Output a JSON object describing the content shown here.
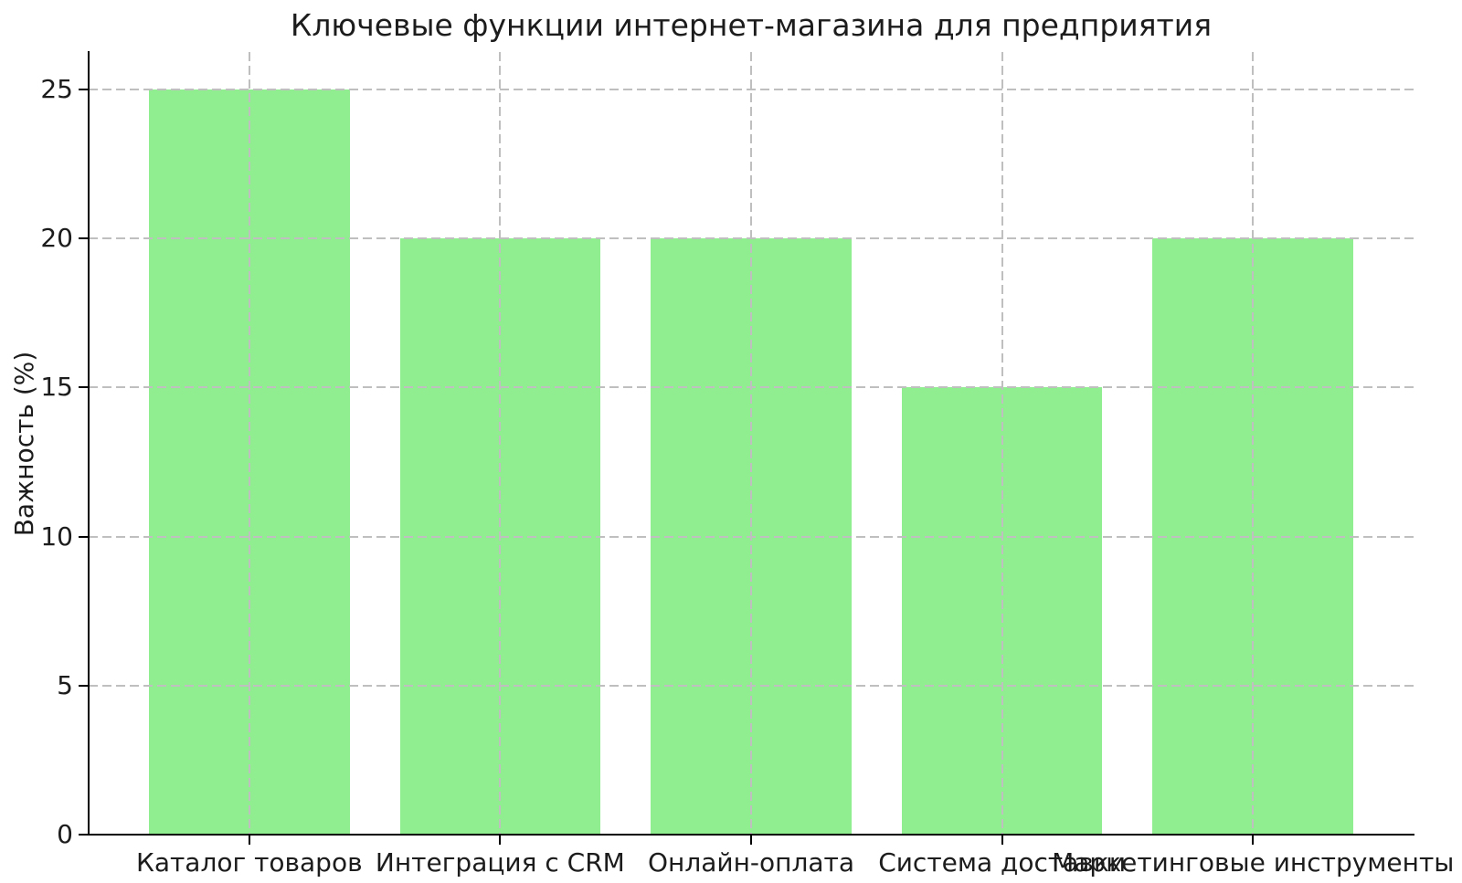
{
  "chart_data": {
    "type": "bar",
    "title": "Ключевые функции интернет-магазина для предприятия",
    "ylabel": "Важность (%)",
    "xlabel": "",
    "categories": [
      "Каталог товаров",
      "Интеграция с CRM",
      "Онлайн-оплата",
      "Система доставки",
      "Маркетинговые инструменты"
    ],
    "values": [
      25,
      20,
      20,
      15,
      20
    ],
    "yticks": [
      0,
      5,
      10,
      15,
      20,
      25
    ],
    "ylim": [
      0,
      26.25
    ],
    "grid": true,
    "legend_position": "none",
    "bar_color": "#90EE90",
    "grid_color": "#bfbfbf",
    "axis_color": "#000000",
    "text_color": "#1c1c1c",
    "background_color": "#ffffff"
  }
}
